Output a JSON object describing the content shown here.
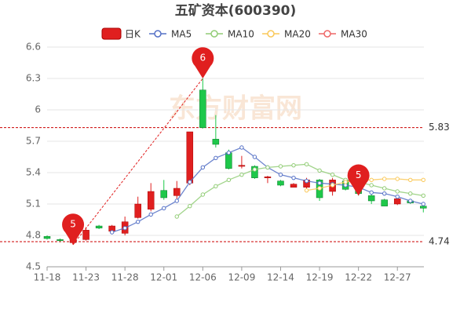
{
  "chart_data": {
    "type": "candlestick",
    "title": "五矿资本(600390)",
    "candle_name": "日K",
    "up_color": "#e01f1f",
    "down_color": "#1ec84a",
    "categories": [
      "11-18",
      null,
      null,
      "11-23",
      null,
      null,
      "11-28",
      null,
      null,
      "12-01",
      null,
      null,
      "12-06",
      null,
      null,
      "12-09",
      null,
      null,
      "12-14",
      null,
      null,
      "12-19",
      null,
      null,
      "12-22",
      null,
      null,
      "12-27",
      null,
      null
    ],
    "open": [
      4.79,
      4.76,
      4.73,
      4.76,
      4.89,
      4.84,
      4.82,
      4.97,
      5.05,
      5.23,
      5.18,
      5.3,
      6.19,
      5.72,
      5.59,
      5.46,
      5.46,
      5.35,
      5.32,
      5.26,
      5.26,
      5.33,
      5.22,
      5.32,
      5.28,
      5.18,
      5.14,
      5.1,
      5.13,
      5.08
    ],
    "close": [
      4.77,
      4.75,
      4.78,
      4.85,
      4.87,
      4.89,
      4.93,
      5.1,
      5.22,
      5.16,
      5.25,
      5.79,
      5.83,
      5.67,
      5.44,
      5.47,
      5.35,
      5.36,
      5.28,
      5.29,
      5.33,
      5.16,
      5.33,
      5.24,
      5.2,
      5.13,
      5.08,
      5.15,
      5.11,
      5.06
    ],
    "high": [
      4.8,
      4.77,
      4.79,
      4.88,
      4.9,
      4.9,
      4.98,
      5.17,
      5.3,
      5.33,
      5.32,
      5.79,
      6.3,
      5.95,
      5.62,
      5.56,
      5.47,
      5.37,
      5.33,
      5.3,
      5.35,
      5.34,
      5.35,
      5.33,
      5.3,
      5.19,
      5.15,
      5.16,
      5.14,
      5.09
    ],
    "low": [
      4.76,
      4.74,
      4.71,
      4.75,
      4.86,
      4.83,
      4.8,
      4.96,
      5.03,
      5.14,
      5.15,
      5.28,
      5.82,
      5.64,
      5.43,
      5.44,
      5.34,
      5.3,
      5.27,
      5.26,
      5.25,
      5.13,
      5.18,
      5.23,
      5.18,
      5.1,
      5.08,
      5.09,
      5.1,
      5.02
    ],
    "series": [
      {
        "name": "MA5",
        "color": "#5470c6",
        "values": [
          null,
          null,
          null,
          null,
          null,
          4.83,
          4.87,
          4.93,
          5.0,
          5.06,
          5.13,
          5.31,
          5.45,
          5.54,
          5.59,
          5.64,
          5.55,
          5.45,
          5.38,
          5.35,
          5.32,
          5.3,
          5.29,
          5.28,
          5.26,
          5.21,
          5.2,
          5.17,
          5.13,
          5.1
        ]
      },
      {
        "name": "MA10",
        "color": "#91cc75",
        "values": [
          null,
          null,
          null,
          null,
          null,
          null,
          null,
          null,
          null,
          null,
          4.98,
          5.08,
          5.19,
          5.27,
          5.33,
          5.38,
          5.43,
          5.45,
          5.46,
          5.47,
          5.48,
          5.42,
          5.38,
          5.33,
          5.31,
          5.28,
          5.25,
          5.22,
          5.2,
          5.18
        ]
      },
      {
        "name": "MA20",
        "color": "#fac858",
        "values": [
          null,
          null,
          null,
          null,
          null,
          null,
          null,
          null,
          null,
          null,
          null,
          null,
          null,
          null,
          null,
          null,
          null,
          null,
          null,
          null,
          5.23,
          5.25,
          5.28,
          5.31,
          5.33,
          5.33,
          5.34,
          5.34,
          5.33,
          5.33
        ]
      },
      {
        "name": "MA30",
        "color": "#ee6666",
        "values": [
          null,
          null,
          null,
          null,
          null,
          null,
          null,
          null,
          null,
          null,
          null,
          null,
          null,
          null,
          null,
          null,
          null,
          null,
          null,
          null,
          null,
          null,
          null,
          null,
          null,
          null,
          null,
          null,
          null,
          null
        ]
      }
    ],
    "ylim": [
      4.5,
      6.6
    ],
    "yticks": [
      4.5,
      4.8,
      5.1,
      5.4,
      5.7,
      6,
      6.3,
      6.6
    ],
    "reference_lines": [
      {
        "value": 5.83,
        "label": "5.83"
      },
      {
        "value": 4.74,
        "label": "4.74"
      }
    ],
    "annotations": [
      {
        "text": "5",
        "index": 2,
        "value": 4.71
      },
      {
        "text": "6",
        "index": 12,
        "value": 6.3
      },
      {
        "text": "5",
        "index": 24,
        "value": 5.18
      }
    ],
    "watermark": "东方财富网",
    "grid": true
  }
}
